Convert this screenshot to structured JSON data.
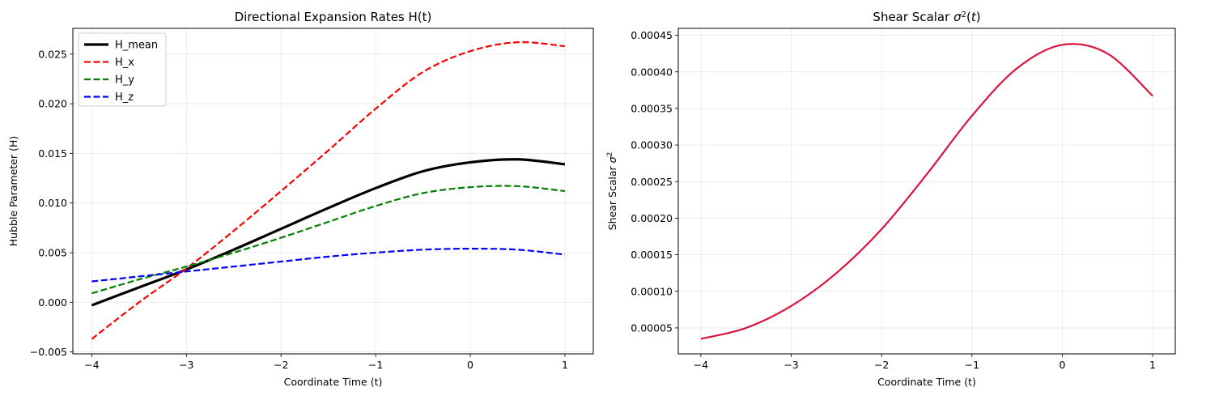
{
  "chart_data": [
    {
      "type": "line",
      "title": "Directional Expansion Rates H(t)",
      "xlabel": "Coordinate Time (t)",
      "ylabel": "Hubble Parameter (H)",
      "xlim": [
        -4.2,
        1.3
      ],
      "ylim": [
        -0.0052,
        0.0276
      ],
      "xticks": [
        -4,
        -3,
        -2,
        -1,
        0,
        1
      ],
      "xtick_labels": [
        "−4",
        "−3",
        "−2",
        "−1",
        "0",
        "1"
      ],
      "yticks": [
        -0.005,
        0.0,
        0.005,
        0.01,
        0.015,
        0.02,
        0.025
      ],
      "ytick_labels": [
        "−0.005",
        "0.000",
        "0.005",
        "0.010",
        "0.015",
        "0.020",
        "0.025"
      ],
      "grid": true,
      "legend_position": "top-left",
      "x": [
        -4.0,
        -3.5,
        -3.0,
        -2.5,
        -2.0,
        -1.5,
        -1.0,
        -0.5,
        0.0,
        0.5,
        1.0
      ],
      "series": [
        {
          "name": "H_mean",
          "color": "#000000",
          "style": "solid",
          "values": [
            -0.0003,
            0.0015,
            0.0033,
            0.0053,
            0.0074,
            0.0095,
            0.0115,
            0.0132,
            0.0141,
            0.0144,
            0.0139
          ]
        },
        {
          "name": "H_x",
          "color": "#ff0000",
          "style": "dashed",
          "values": [
            -0.0037,
            0.0,
            0.0034,
            0.0072,
            0.0112,
            0.0153,
            0.0195,
            0.0232,
            0.0253,
            0.0262,
            0.0258
          ]
        },
        {
          "name": "H_y",
          "color": "#008000",
          "style": "dashed",
          "values": [
            0.0009,
            0.0023,
            0.0036,
            0.005,
            0.0065,
            0.0081,
            0.0097,
            0.011,
            0.0116,
            0.0117,
            0.0112
          ]
        },
        {
          "name": "H_z",
          "color": "#0000ff",
          "style": "dashed",
          "values": [
            0.0021,
            0.0026,
            0.0031,
            0.0036,
            0.0041,
            0.0046,
            0.005,
            0.0053,
            0.0054,
            0.0053,
            0.0048
          ]
        }
      ]
    },
    {
      "type": "line",
      "title_prefix": "Shear Scalar ",
      "title_suffix": "(t)",
      "xlabel": "Coordinate Time (t)",
      "ylabel_prefix": "Shear Scalar ",
      "xlim": [
        -4.25,
        1.25
      ],
      "ylim": [
        1.45e-05,
        0.0004595
      ],
      "xticks": [
        -4,
        -3,
        -2,
        -1,
        0,
        1
      ],
      "xtick_labels": [
        "−4",
        "−3",
        "−2",
        "−1",
        "0",
        "1"
      ],
      "yticks": [
        5e-05,
        0.0001,
        0.00015,
        0.0002,
        0.00025,
        0.0003,
        0.00035,
        0.0004,
        0.00045
      ],
      "ytick_labels": [
        "0.00005",
        "0.00010",
        "0.00015",
        "0.00020",
        "0.00025",
        "0.00030",
        "0.00035",
        "0.00040",
        "0.00045"
      ],
      "grid": true,
      "x": [
        -4.0,
        -3.5,
        -3.0,
        -2.5,
        -2.0,
        -1.5,
        -1.0,
        -0.5,
        0.0,
        0.5,
        1.0
      ],
      "series": [
        {
          "color": "#dc143c",
          "style": "solid",
          "values": [
            3.5e-05,
            5e-05,
            8e-05,
            0.000125,
            0.000185,
            0.00026,
            0.00034,
            0.000405,
            0.000437,
            0.000425,
            0.000367
          ]
        }
      ]
    }
  ]
}
